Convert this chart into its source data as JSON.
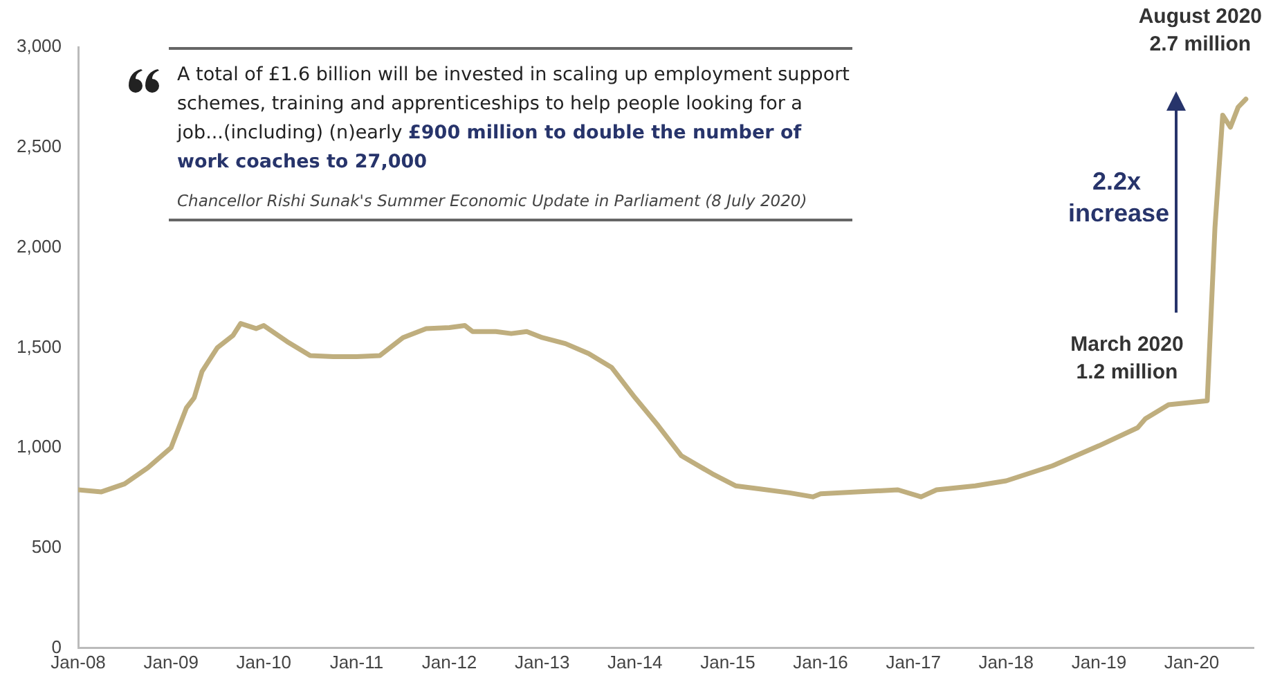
{
  "chart_data": {
    "type": "line",
    "x": [
      "2008-01",
      "2008-04",
      "2008-07",
      "2008-10",
      "2009-01",
      "2009-02",
      "2009-03",
      "2009-04",
      "2009-05",
      "2009-07",
      "2009-09",
      "2009-10",
      "2009-12",
      "2010-01",
      "2010-04",
      "2010-07",
      "2010-10",
      "2011-01",
      "2011-04",
      "2011-07",
      "2011-10",
      "2012-01",
      "2012-03",
      "2012-04",
      "2012-07",
      "2012-09",
      "2012-11",
      "2013-01",
      "2013-04",
      "2013-07",
      "2013-10",
      "2014-01",
      "2014-04",
      "2014-07",
      "2014-11",
      "2015-02",
      "2015-05",
      "2015-09",
      "2015-12",
      "2016-01",
      "2016-11",
      "2017-02",
      "2017-04",
      "2017-09",
      "2018-01",
      "2018-07",
      "2019-01",
      "2019-06",
      "2019-07",
      "2019-10",
      "2020-03",
      "2020-04",
      "2020-05",
      "2020-06",
      "2020-07",
      "2020-08"
    ],
    "series": [
      {
        "color": "#bfae7e",
        "values": [
          790,
          780,
          820,
          900,
          1000,
          1100,
          1200,
          1250,
          1380,
          1500,
          1560,
          1620,
          1595,
          1610,
          1530,
          1460,
          1455,
          1455,
          1460,
          1550,
          1595,
          1600,
          1610,
          1580,
          1580,
          1570,
          1580,
          1550,
          1520,
          1470,
          1400,
          1250,
          1110,
          960,
          870,
          810,
          795,
          775,
          755,
          770,
          790,
          755,
          790,
          810,
          835,
          910,
          1010,
          1100,
          1145,
          1215,
          1235,
          2100,
          2660,
          2600,
          2700,
          2740
        ]
      }
    ],
    "xlim": [
      "2008-01",
      "2020-09"
    ],
    "xticks": [
      {
        "value": "2008-01",
        "label": "Jan-08"
      },
      {
        "value": "2009-01",
        "label": "Jan-09"
      },
      {
        "value": "2010-01",
        "label": "Jan-10"
      },
      {
        "value": "2011-01",
        "label": "Jan-11"
      },
      {
        "value": "2012-01",
        "label": "Jan-12"
      },
      {
        "value": "2013-01",
        "label": "Jan-13"
      },
      {
        "value": "2014-01",
        "label": "Jan-14"
      },
      {
        "value": "2015-01",
        "label": "Jan-15"
      },
      {
        "value": "2016-01",
        "label": "Jan-16"
      },
      {
        "value": "2017-01",
        "label": "Jan-17"
      },
      {
        "value": "2018-01",
        "label": "Jan-18"
      },
      {
        "value": "2019-01",
        "label": "Jan-19"
      },
      {
        "value": "2020-01",
        "label": "Jan-20"
      }
    ],
    "ylim": [
      0,
      3000
    ],
    "yticks": [
      0,
      500,
      {
        "value": 1000,
        "label": "1,000"
      },
      {
        "value": 1500,
        "label": "1,500"
      },
      {
        "value": 2000,
        "label": "2,000"
      },
      {
        "value": 2500,
        "label": "2,500"
      },
      {
        "value": 3000,
        "label": "3,000"
      }
    ],
    "grid": false,
    "legend": false,
    "marker": "none",
    "line_style": "solid",
    "annotations": [
      "A total of £1.6 billion will be invested in scaling up employment support schemes, training and apprenticeships to help people looking for a job...(including) (n)early",
      "£900 million to double the number of work coaches to 27,000",
      "Chancellor Rishi Sunak's Summer Economic Update in Parliament (8 July 2020)",
      "2.2x\nincrease",
      {
        "text": "March 2020\n1.2 million",
        "x": "2020-03",
        "y": 1235
      },
      {
        "text": "August 2020\n2.7 million",
        "x": "2020-08",
        "y": 2740
      }
    ]
  }
}
